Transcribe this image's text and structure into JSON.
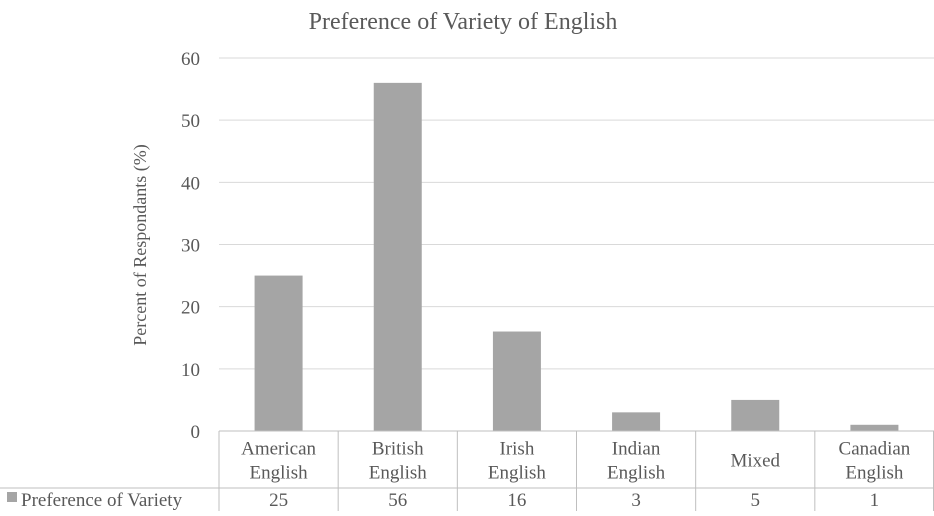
{
  "chart_data": {
    "type": "bar",
    "title": "Preference of Variety of English",
    "xlabel": "",
    "ylabel": "Percent of Respondants (%)",
    "ylim": [
      0,
      60
    ],
    "yticks": [
      0,
      10,
      20,
      30,
      40,
      50,
      60
    ],
    "categories": [
      [
        "American",
        "English"
      ],
      [
        "British",
        "English"
      ],
      [
        "Irish",
        "English"
      ],
      [
        "Indian",
        "English"
      ],
      [
        "Mixed"
      ],
      [
        "Canadian",
        "English"
      ]
    ],
    "series": [
      {
        "name": "Preference of Variety",
        "values": [
          25,
          56,
          16,
          3,
          5,
          1
        ]
      }
    ],
    "grid": true,
    "legend": "data-table-left",
    "data_table": true
  },
  "colors": {
    "bar": "#a5a5a5",
    "grid": "#d9d9d9",
    "text": "#595959",
    "table_line": "#bfbfbf"
  }
}
